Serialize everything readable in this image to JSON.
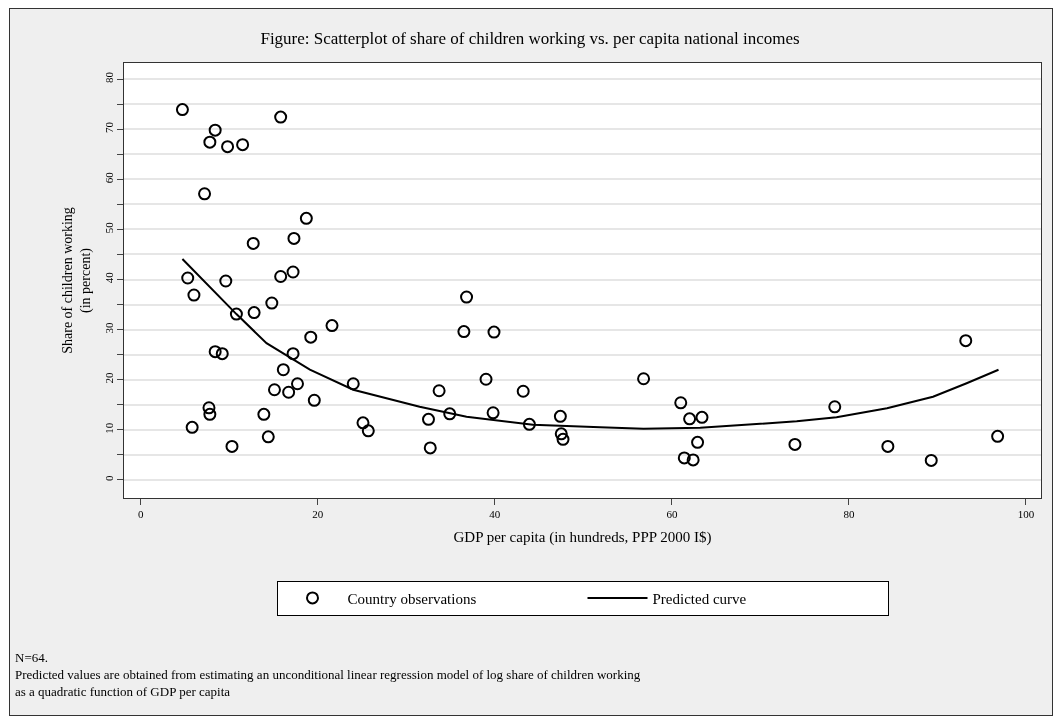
{
  "chart_data": {
    "type": "scatter",
    "title": "Figure: Scatterplot of share of children working vs. per capita national incomes",
    "xlabel": "GDP per capita (in hundreds, PPP 2000 I$)",
    "ylabel": "Share of children working\n(in percent)",
    "annotations": [
      "N=64.",
      "Predicted values are obtained from estimating an unconditional linear regression model of log share of children working\nas a quadratic function of GDP per capita"
    ],
    "xlim": [
      -1.9,
      101.7
    ],
    "ylim": [
      -3.6,
      83.2
    ],
    "xticks": [
      0,
      20,
      40,
      60,
      80,
      100
    ],
    "yticks": [
      0,
      {
        "value": 5,
        "label": null
      },
      10,
      {
        "value": 15,
        "label": null
      },
      20,
      {
        "value": 25,
        "label": null
      },
      30,
      {
        "value": 35,
        "label": null
      },
      40,
      {
        "value": 45,
        "label": null
      },
      50,
      {
        "value": 55,
        "label": null
      },
      60,
      {
        "value": 65,
        "label": null
      },
      70,
      {
        "value": 75,
        "label": null
      },
      80
    ],
    "grid": "y",
    "legend": "bottom",
    "series": [
      {
        "name": "Country observations",
        "marker": "circle",
        "color": "#000000",
        "x": [
          4.7,
          15.8,
          8.4,
          7.8,
          9.8,
          11.5,
          7.2,
          18.7,
          12.7,
          17.3,
          5.3,
          9.6,
          15.8,
          17.2,
          6.0,
          10.8,
          12.8,
          14.8,
          21.6,
          19.2,
          8.4,
          9.2,
          17.2,
          16.1,
          15.1,
          16.7,
          17.7,
          19.6,
          24.0,
          7.7,
          7.8,
          5.8,
          13.9,
          14.4,
          10.3,
          25.1,
          25.7,
          36.8,
          36.5,
          39.9,
          39.0,
          33.7,
          43.2,
          32.5,
          34.9,
          39.8,
          43.9,
          32.7,
          47.4,
          47.5,
          47.7,
          56.8,
          61.0,
          62.0,
          63.4,
          62.9,
          61.4,
          62.4,
          73.9,
          78.4,
          84.4,
          89.3,
          93.2,
          96.8
        ],
        "values": [
          73.9,
          72.4,
          69.8,
          67.4,
          66.5,
          66.9,
          57.1,
          52.2,
          47.2,
          48.2,
          40.3,
          39.7,
          40.6,
          41.5,
          36.9,
          33.1,
          33.4,
          35.3,
          30.8,
          28.5,
          25.6,
          25.2,
          25.2,
          22.0,
          18.0,
          17.5,
          19.2,
          15.9,
          19.2,
          14.4,
          13.1,
          10.5,
          13.1,
          8.6,
          6.7,
          11.4,
          9.8,
          36.5,
          29.6,
          29.5,
          20.1,
          17.8,
          17.7,
          12.1,
          13.2,
          13.4,
          11.1,
          6.4,
          12.7,
          9.2,
          8.1,
          20.2,
          15.4,
          12.2,
          12.5,
          7.5,
          4.4,
          4.0,
          7.1,
          14.6,
          6.7,
          3.9,
          27.8,
          8.7
        ]
      },
      {
        "name": "Predicted curve",
        "type": "line",
        "marker": "none",
        "line_style": "solid",
        "color": "#000000",
        "x": [
          4.7,
          10.8,
          14.2,
          19.1,
          24.0,
          31.5,
          36.8,
          44.3,
          51.9,
          56.8,
          63.2,
          74.1,
          78.6,
          84.3,
          89.5,
          93.3,
          96.9
        ],
        "values": [
          44.1,
          33.1,
          27.3,
          22.0,
          18.0,
          14.6,
          12.6,
          11.0,
          10.5,
          10.2,
          10.4,
          11.7,
          12.5,
          14.3,
          16.6,
          19.3,
          22.0
        ]
      }
    ]
  }
}
